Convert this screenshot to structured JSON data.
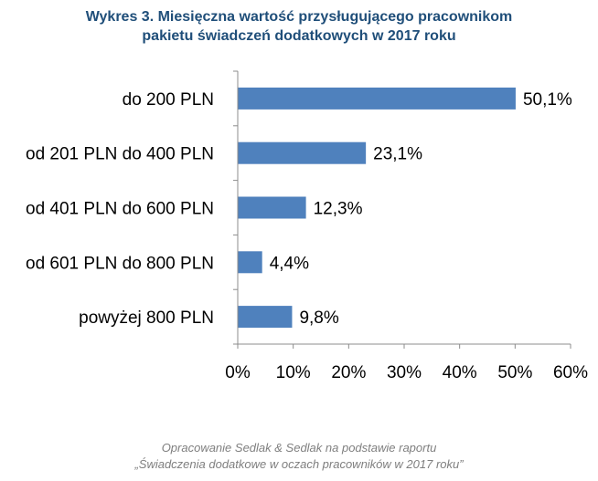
{
  "title": {
    "line1": "Wykres 3. Miesięczna wartość przysługującego pracownikom",
    "line2": "pakietu świadczeń dodatkowych w 2017 roku"
  },
  "source": {
    "line1": "Opracowanie Sedlak & Sedlak na podstawie raportu",
    "line2": "„Świadczenia dodatkowe w oczach pracowników w 2017 roku”"
  },
  "colors": {
    "bar": "#4f81bd",
    "title": "#1f4e79",
    "axis": "#8c8c8c",
    "text": "#000000",
    "source": "#7f7f7f"
  },
  "chart_data": {
    "type": "bar",
    "orientation": "horizontal",
    "categories": [
      "do 200 PLN",
      "od 201 PLN do 400 PLN",
      "od 401 PLN do 600 PLN",
      "od 601 PLN do 800 PLN",
      "powyżej 800 PLN"
    ],
    "values": [
      50.1,
      23.1,
      12.3,
      4.4,
      9.8
    ],
    "value_labels": [
      "50,1%",
      "23,1%",
      "12,3%",
      "4,4%",
      "9,8%"
    ],
    "xlim": [
      0,
      60
    ],
    "xticks": [
      0,
      10,
      20,
      30,
      40,
      50,
      60
    ],
    "xtick_labels": [
      "0%",
      "10%",
      "20%",
      "30%",
      "40%",
      "50%",
      "60%"
    ],
    "grid": false,
    "legend": "none"
  }
}
